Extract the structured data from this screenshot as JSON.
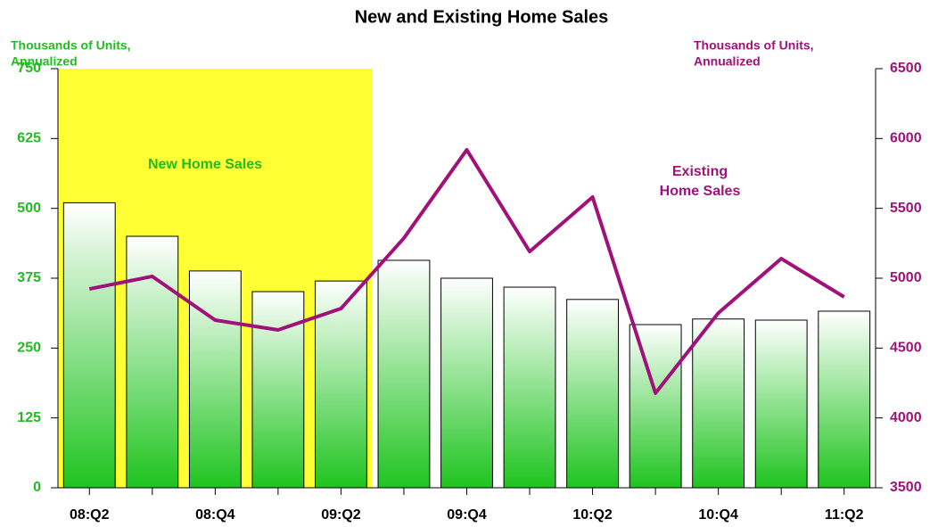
{
  "chart_data": {
    "type": "bar",
    "title": "New and Existing Home Sales",
    "y_label": [
      "Thousands of Units,",
      "Annualized"
    ],
    "y2_label": [
      "Thousands of Units,",
      "Annualized"
    ],
    "categories": [
      "08:Q2",
      null,
      "08:Q4",
      null,
      "09:Q2",
      null,
      "09:Q4",
      null,
      "10:Q2",
      null,
      "10:Q4",
      null,
      "11:Q2"
    ],
    "series": [
      {
        "type": "bar",
        "color": "#1fc41f",
        "values": [
          510,
          450,
          388,
          351,
          370,
          407,
          375,
          359,
          337,
          292,
          302,
          300,
          316
        ]
      },
      {
        "type": "line",
        "axis": "y2",
        "color": "#a0127a",
        "values": [
          4923,
          5013,
          4700,
          4630,
          4783,
          5287,
          5919,
          5191,
          5581,
          4177,
          4751,
          5140,
          4866
        ]
      }
    ],
    "annotations": [
      {
        "lines": [
          "New Home Sales"
        ],
        "color": "#22bb22"
      },
      {
        "lines": [
          "Existing",
          "Home Sales"
        ],
        "color": "#a0127a"
      }
    ],
    "ylim": [
      0,
      750
    ],
    "yticks": [
      0,
      125,
      250,
      375,
      500,
      625,
      750
    ],
    "y_color": "#22bb22",
    "y2lim": [
      3500,
      6500
    ],
    "y2ticks": [
      3500,
      4000,
      4500,
      5000,
      5500,
      6000,
      6500
    ],
    "y2_color": "#a0127a"
  }
}
